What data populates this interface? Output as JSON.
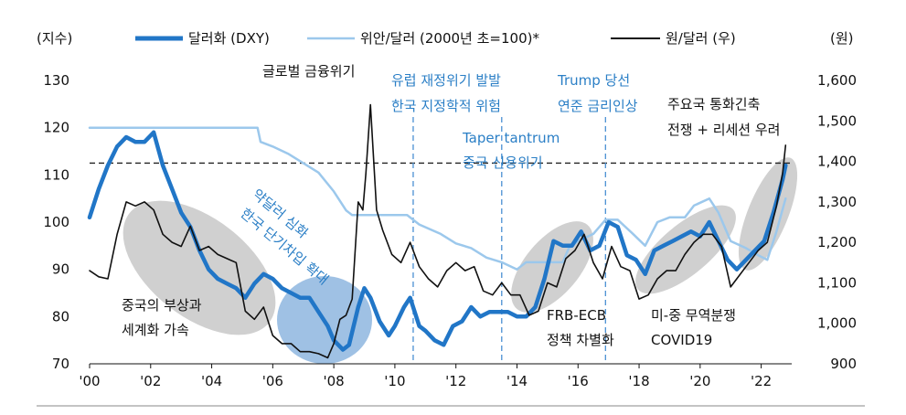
{
  "chart_data": {
    "type": "line",
    "left_axis_unit": "(지수)",
    "right_axis_unit": "(원)",
    "x_ticks": [
      "'00",
      "'02",
      "'04",
      "'06",
      "'08",
      "'10",
      "'12",
      "'14",
      "'16",
      "'18",
      "'20",
      "'22"
    ],
    "x_range": [
      2000,
      2023
    ],
    "left_ylim": [
      70,
      130
    ],
    "left_ticks": [
      "70",
      "80",
      "90",
      "100",
      "110",
      "120",
      "130"
    ],
    "right_ylim": [
      900,
      1600
    ],
    "right_ticks": [
      "900",
      "1,000",
      "1,100",
      "1,200",
      "1,300",
      "1,400",
      "1,500",
      "1,600"
    ],
    "reference_line_left": 112.5,
    "event_lines": [
      2010.6,
      2013.5,
      2016.9
    ],
    "series": [
      {
        "name": "달러화 (DXY)",
        "axis": "left",
        "color": "#2176c7",
        "x": [
          2000.0,
          2000.3,
          2000.6,
          2000.9,
          2001.2,
          2001.5,
          2001.8,
          2002.1,
          2002.4,
          2002.7,
          2003.0,
          2003.3,
          2003.6,
          2003.9,
          2004.2,
          2004.5,
          2004.8,
          2005.1,
          2005.4,
          2005.7,
          2006.0,
          2006.3,
          2006.6,
          2006.9,
          2007.2,
          2007.5,
          2007.8,
          2008.0,
          2008.3,
          2008.5,
          2008.8,
          2009.0,
          2009.2,
          2009.5,
          2009.8,
          2010.0,
          2010.3,
          2010.5,
          2010.8,
          2011.0,
          2011.3,
          2011.6,
          2011.9,
          2012.2,
          2012.5,
          2012.8,
          2013.1,
          2013.4,
          2013.7,
          2014.0,
          2014.3,
          2014.6,
          2014.9,
          2015.2,
          2015.5,
          2015.8,
          2016.1,
          2016.4,
          2016.7,
          2017.0,
          2017.3,
          2017.6,
          2017.9,
          2018.2,
          2018.5,
          2018.8,
          2019.1,
          2019.4,
          2019.7,
          2020.0,
          2020.3,
          2020.6,
          2020.9,
          2021.2,
          2021.5,
          2021.8,
          2022.1,
          2022.4,
          2022.7,
          2022.8
        ],
        "values": [
          101,
          107,
          112,
          116,
          118,
          117,
          117,
          119,
          112,
          107,
          102,
          99,
          94,
          90,
          88,
          87,
          86,
          84,
          87,
          89,
          88,
          86,
          85,
          84,
          84,
          81,
          78,
          75,
          73,
          74,
          82,
          86,
          84,
          79,
          76,
          78,
          82,
          84,
          78,
          77,
          75,
          74,
          78,
          79,
          82,
          80,
          81,
          81,
          81,
          80,
          80,
          82,
          88,
          96,
          95,
          95,
          98,
          94,
          95,
          100,
          99,
          93,
          92,
          89,
          94,
          95,
          96,
          97,
          98,
          97,
          100,
          96,
          92,
          90,
          92,
          94,
          96,
          102,
          109,
          112
        ]
      },
      {
        "name": "위안/달러 (2000년 초=100)*",
        "axis": "left",
        "color": "#9cc8ec",
        "x": [
          2000.0,
          2005.5,
          2005.6,
          2006.0,
          2006.5,
          2007.0,
          2007.5,
          2008.0,
          2008.4,
          2008.6,
          2010.4,
          2010.8,
          2011.5,
          2012.0,
          2012.5,
          2013.0,
          2013.5,
          2014.0,
          2014.3,
          2014.8,
          2015.5,
          2015.7,
          2016.0,
          2016.5,
          2016.9,
          2017.3,
          2017.8,
          2018.2,
          2018.6,
          2019.0,
          2019.5,
          2019.8,
          2020.3,
          2020.6,
          2021.0,
          2021.5,
          2021.9,
          2022.2,
          2022.5,
          2022.8
        ],
        "values": [
          120,
          120,
          117,
          116,
          114.5,
          112.5,
          110.5,
          106.5,
          102.5,
          101.5,
          101.5,
          99.5,
          97.5,
          95.5,
          94.5,
          92.5,
          91.5,
          90,
          91.5,
          91.5,
          91.5,
          94.5,
          96,
          97.5,
          100.5,
          100.5,
          97.5,
          95,
          100,
          101,
          101,
          103.5,
          105,
          102,
          96,
          94.5,
          93,
          92,
          98,
          105
        ]
      },
      {
        "name": "원/달러 (우)",
        "axis": "right",
        "color": "#111111",
        "x": [
          2000.0,
          2000.3,
          2000.6,
          2000.9,
          2001.2,
          2001.5,
          2001.8,
          2002.1,
          2002.4,
          2002.7,
          2003.0,
          2003.3,
          2003.6,
          2003.9,
          2004.2,
          2004.5,
          2004.8,
          2005.1,
          2005.4,
          2005.7,
          2006.0,
          2006.3,
          2006.6,
          2006.9,
          2007.2,
          2007.5,
          2007.8,
          2008.0,
          2008.2,
          2008.4,
          2008.6,
          2008.8,
          2008.95,
          2009.05,
          2009.2,
          2009.4,
          2009.6,
          2009.9,
          2010.2,
          2010.5,
          2010.8,
          2011.1,
          2011.4,
          2011.7,
          2012.0,
          2012.3,
          2012.6,
          2012.9,
          2013.2,
          2013.5,
          2013.8,
          2014.1,
          2014.4,
          2014.7,
          2015.0,
          2015.3,
          2015.6,
          2015.9,
          2016.2,
          2016.5,
          2016.8,
          2017.1,
          2017.4,
          2017.7,
          2018.0,
          2018.3,
          2018.6,
          2018.9,
          2019.2,
          2019.5,
          2019.8,
          2020.1,
          2020.4,
          2020.7,
          2021.0,
          2021.3,
          2021.6,
          2021.9,
          2022.2,
          2022.5,
          2022.7,
          2022.8
        ],
        "values": [
          1130,
          1115,
          1110,
          1220,
          1300,
          1290,
          1300,
          1280,
          1220,
          1200,
          1190,
          1240,
          1180,
          1190,
          1170,
          1160,
          1150,
          1030,
          1010,
          1040,
          970,
          950,
          950,
          930,
          930,
          925,
          915,
          950,
          1010,
          1020,
          1060,
          1300,
          1280,
          1370,
          1540,
          1280,
          1230,
          1170,
          1150,
          1200,
          1140,
          1110,
          1090,
          1130,
          1150,
          1130,
          1140,
          1080,
          1070,
          1100,
          1070,
          1070,
          1020,
          1030,
          1100,
          1090,
          1160,
          1180,
          1220,
          1150,
          1110,
          1190,
          1140,
          1130,
          1060,
          1070,
          1110,
          1130,
          1130,
          1170,
          1200,
          1220,
          1220,
          1190,
          1090,
          1120,
          1150,
          1180,
          1200,
          1290,
          1370,
          1440
        ]
      }
    ],
    "annotations": [
      {
        "id": "gfc",
        "lines": [
          "글로벌 금융위기"
        ],
        "color": "dark"
      },
      {
        "id": "china",
        "lines": [
          "중국의 부상과",
          "세계화 가속"
        ],
        "color": "dark"
      },
      {
        "id": "weakdollar",
        "lines": [
          "약달러 심화",
          "한국 단기차입 확대"
        ],
        "color": "blue"
      },
      {
        "id": "euro",
        "lines": [
          "유럽 재정위기 발발",
          "한국 지정학적 위험"
        ],
        "color": "blue"
      },
      {
        "id": "taper",
        "lines": [
          "Taper tantrum",
          "중국 신용위기"
        ],
        "color": "blue"
      },
      {
        "id": "trump",
        "lines": [
          "Trump 당선",
          "연준 금리인상"
        ],
        "color": "blue"
      },
      {
        "id": "frb",
        "lines": [
          "FRB-ECB",
          "정책 차별화"
        ],
        "color": "dark"
      },
      {
        "id": "trade",
        "lines": [
          "미-중 무역분쟁",
          "COVID19"
        ],
        "color": "dark"
      },
      {
        "id": "major",
        "lines": [
          "주요국 통화긴축",
          "전쟁 + 리세션 우려"
        ],
        "color": "dark"
      }
    ]
  }
}
